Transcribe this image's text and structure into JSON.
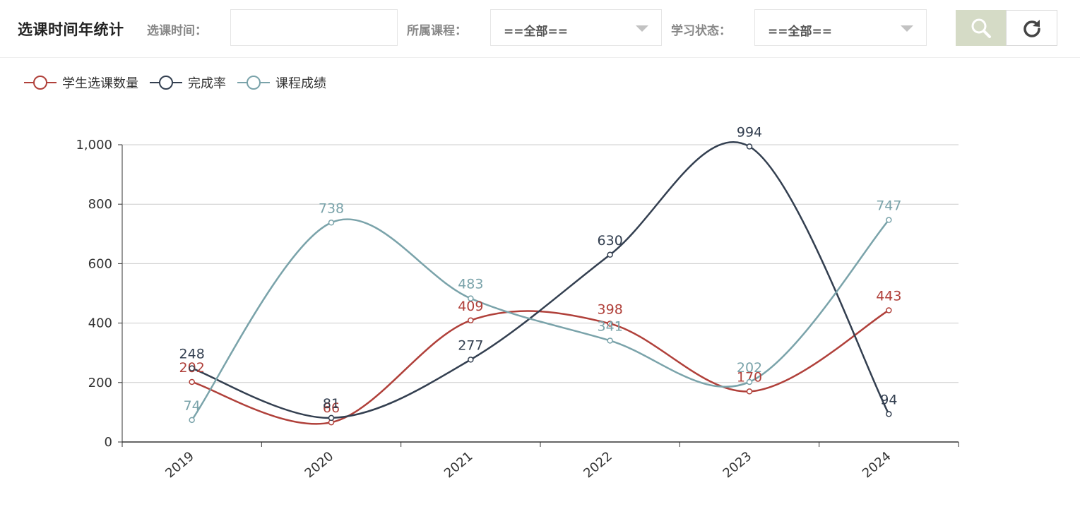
{
  "page_title": "选课时间年统计",
  "filters": {
    "time_label": "选课时间：",
    "time_value": "",
    "course_label": "所属课程：",
    "course_selected": "==全部==",
    "status_label": "学习状态：",
    "status_selected": "==全部=="
  },
  "icons": {
    "search": "search-icon",
    "refresh": "refresh-icon"
  },
  "chart_data": {
    "type": "line",
    "smooth": true,
    "categories": [
      "2019",
      "2020",
      "2021",
      "2022",
      "2023",
      "2024"
    ],
    "ylim": [
      0,
      1000
    ],
    "yticks": [
      0,
      200,
      400,
      600,
      800,
      1000
    ],
    "ytick_labels": [
      "0",
      "200",
      "400",
      "600",
      "800",
      "1,000"
    ],
    "grid": true,
    "legend_position": "top-left",
    "series": [
      {
        "name": "学生选课数量",
        "color": "#b0403a",
        "values": [
          202,
          66,
          409,
          398,
          170,
          443
        ]
      },
      {
        "name": "完成率",
        "color": "#333f50",
        "values": [
          248,
          81,
          277,
          630,
          994,
          94
        ]
      },
      {
        "name": "课程成绩",
        "color": "#7aa3aa",
        "values": [
          74,
          738,
          483,
          341,
          202,
          747
        ]
      }
    ]
  }
}
